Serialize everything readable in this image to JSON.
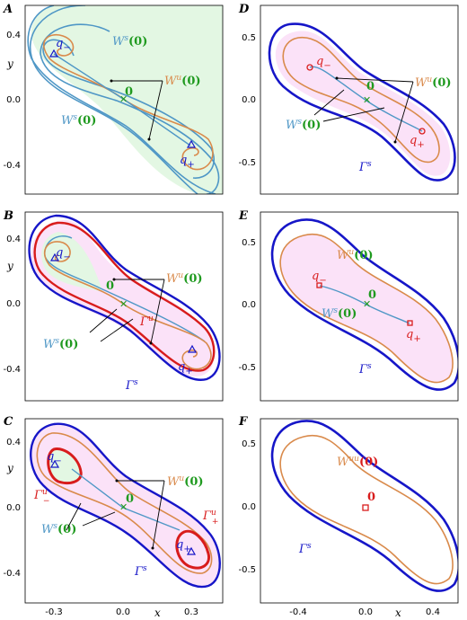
{
  "colors": {
    "stable_manifold": "#4f97c6",
    "unstable_manifold": "#d98a4b",
    "gamma_s": "#1616c8",
    "gamma_u": "#d81c1c",
    "green_zero": "#1f9a1f",
    "fill_green": "#e3f7e3",
    "fill_pink": "#fbe2f8"
  },
  "panels": {
    "A": {
      "letter": "A",
      "y_ticks": [
        "0.4",
        "0.0",
        "-0.4"
      ],
      "y_label": "y"
    },
    "B": {
      "letter": "B",
      "y_ticks": [
        "0.4",
        "0.0",
        "-0.4"
      ],
      "y_label": "y"
    },
    "C": {
      "letter": "C",
      "y_ticks": [
        "0.4",
        "0.0",
        "-0.4"
      ],
      "y_label": "y",
      "x_ticks": [
        "-0.3",
        "0.0",
        "0.3"
      ],
      "x_label": "x"
    },
    "D": {
      "letter": "D",
      "y_ticks": [
        "0.5",
        "0.0",
        "-0.5"
      ]
    },
    "E": {
      "letter": "E",
      "y_ticks": [
        "0.5",
        "0.0",
        "-0.5"
      ]
    },
    "F": {
      "letter": "F",
      "y_ticks": [
        "0.5",
        "0.0",
        "-0.5"
      ],
      "x_ticks": [
        "-0.4",
        "0.0",
        "0.4"
      ],
      "x_label": "x"
    }
  },
  "labels": {
    "ws0": "W",
    "ws0_sup": "s",
    "wu0": "W",
    "wu0_sup": "u",
    "wuu0_sup": "uu",
    "zero_arg": "(0)",
    "zero": "0",
    "q_minus": "q",
    "q_plus": "q",
    "minus_sub": "−",
    "plus_sub": "+",
    "gamma": "Γ",
    "gamma_s_sup": "s",
    "gamma_u_sup": "u",
    "gamma_u_minus_sub": "−",
    "gamma_u_plus_sub": "+"
  }
}
